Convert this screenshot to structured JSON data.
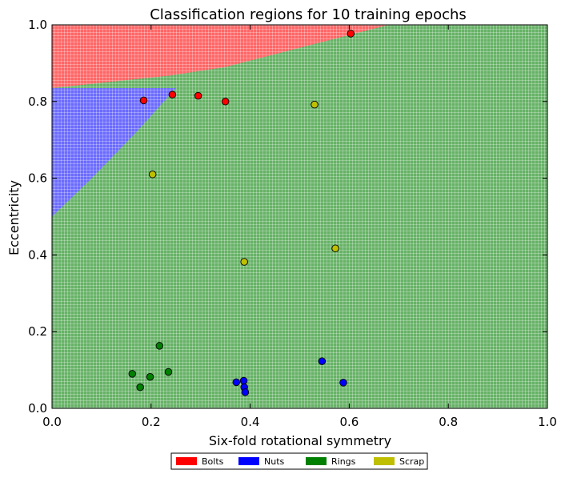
{
  "chart_data": {
    "type": "scatter",
    "title": "Classification regions for 10 training epochs",
    "xlabel": "Six-fold rotational symmetry",
    "ylabel": "Eccentricity",
    "xlim": [
      0,
      1
    ],
    "ylim": [
      0,
      1
    ],
    "xticks": [
      "0.0",
      "0.2",
      "0.4",
      "0.6",
      "0.8",
      "1.0"
    ],
    "yticks": [
      "0.0",
      "0.2",
      "0.4",
      "0.6",
      "0.8",
      "1.0"
    ],
    "grid": false,
    "legend_placement": "bottom-center",
    "regions": {
      "Bolts": {
        "color": "#ff6666",
        "boundary_to_green": [
          [
            0.0,
            0.835
          ],
          [
            0.24,
            0.868
          ],
          [
            0.35,
            0.89
          ],
          [
            0.68,
            1.0
          ]
        ]
      },
      "Nuts": {
        "color": "#6b6bff",
        "boundary_to_green": [
          [
            0.0,
            0.5
          ],
          [
            0.08,
            0.6
          ],
          [
            0.17,
            0.72
          ],
          [
            0.25,
            0.835
          ]
        ],
        "top": 0.835
      },
      "Rings": {
        "color": "#66b266"
      }
    },
    "series": [
      {
        "name": "Bolts",
        "color": "#ff0000",
        "points": [
          [
            0.185,
            0.803
          ],
          [
            0.243,
            0.818
          ],
          [
            0.295,
            0.815
          ],
          [
            0.35,
            0.8
          ],
          [
            0.603,
            0.977
          ]
        ]
      },
      {
        "name": "Nuts",
        "color": "#0000ff",
        "points": [
          [
            0.372,
            0.068
          ],
          [
            0.387,
            0.072
          ],
          [
            0.388,
            0.055
          ],
          [
            0.39,
            0.042
          ],
          [
            0.545,
            0.123
          ],
          [
            0.588,
            0.067
          ]
        ]
      },
      {
        "name": "Rings",
        "color": "#008000",
        "points": [
          [
            0.162,
            0.09
          ],
          [
            0.178,
            0.055
          ],
          [
            0.198,
            0.082
          ],
          [
            0.217,
            0.163
          ],
          [
            0.235,
            0.095
          ]
        ]
      },
      {
        "name": "Scrap",
        "color": "#bfbf00",
        "points": [
          [
            0.203,
            0.61
          ],
          [
            0.388,
            0.382
          ],
          [
            0.53,
            0.792
          ],
          [
            0.572,
            0.417
          ]
        ]
      }
    ]
  }
}
